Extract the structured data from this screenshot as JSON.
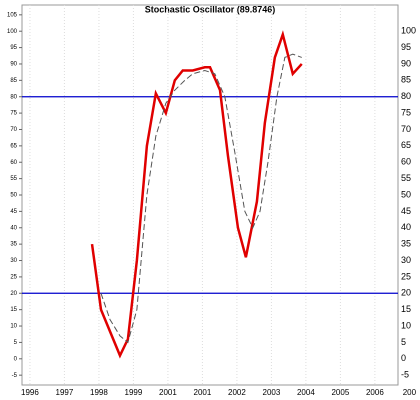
{
  "chart_data": {
    "type": "line",
    "title": "Stochastic Oscillator (89.8746)",
    "categories": [
      "1996",
      "1997",
      "1998",
      "1999",
      "2001",
      "2001",
      "2002",
      "2003",
      "2004",
      "2005",
      "2006",
      "200"
    ],
    "xlim": [
      -0.23,
      10.67
    ],
    "ylim": [
      -8,
      108
    ],
    "yticks": [
      -5,
      0,
      5,
      10,
      15,
      20,
      25,
      30,
      35,
      40,
      45,
      50,
      55,
      60,
      65,
      70,
      75,
      80,
      85,
      90,
      95,
      100,
      105
    ],
    "y2lim": [
      -8,
      108
    ],
    "y2ticks": [
      -5,
      0,
      5,
      10,
      15,
      20,
      25,
      30,
      35,
      40,
      45,
      50,
      55,
      60,
      65,
      70,
      75,
      80,
      85,
      90,
      95,
      100
    ],
    "hlines": [
      80,
      20
    ],
    "hline_color": "#0000cc",
    "grid": true,
    "series": [
      {
        "color": "#e00000",
        "dash": false,
        "x": [
          1.8,
          2.06,
          2.61,
          2.84,
          3.1,
          3.39,
          3.65,
          3.94,
          4.2,
          4.43,
          4.72,
          5.07,
          5.22,
          5.51,
          5.74,
          6.03,
          6.26,
          6.58,
          6.81,
          7.1,
          7.33,
          7.62,
          7.88
        ],
        "values": [
          35,
          15,
          1,
          6,
          30,
          65,
          81,
          75,
          85,
          88,
          88,
          89,
          89,
          82,
          62,
          40,
          31,
          48,
          72,
          92,
          99,
          87,
          90
        ]
      },
      {
        "color": "#555555",
        "dash": true,
        "x": [
          2.06,
          2.32,
          2.61,
          2.84,
          3.1,
          3.39,
          3.65,
          3.94,
          4.2,
          4.49,
          4.72,
          5.07,
          5.36,
          5.65,
          5.94,
          6.23,
          6.46,
          6.67,
          6.9,
          7.16,
          7.39,
          7.62,
          7.88
        ],
        "values": [
          20,
          12,
          7,
          5,
          15,
          50,
          68,
          78,
          82,
          85,
          87,
          88,
          87,
          80,
          63,
          45,
          40,
          45,
          60,
          80,
          92,
          93,
          92
        ]
      }
    ]
  }
}
